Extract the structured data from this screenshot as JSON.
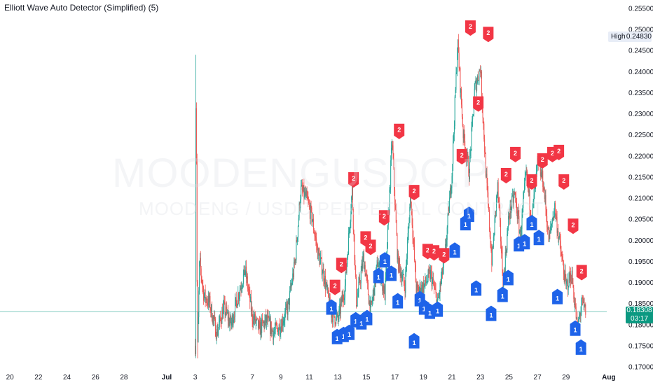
{
  "indicator": {
    "title": "Elliott Wave Auto Detector (Simplified) (5)"
  },
  "watermark": {
    "symbol": "MOODENGUSDC.P",
    "description": "MOODENG / USDC PERPETUAL CONTRACT"
  },
  "badges": {
    "high_label": "High",
    "high_value": "0.24830",
    "last_price": "0.18308",
    "countdown": "03:17"
  },
  "colors": {
    "background": "#ffffff",
    "bullish_candle": "#26a69a",
    "bearish_candle": "#ef5350",
    "wave1_marker": "#1e63e9",
    "wave2_marker": "#f23645",
    "price_line": "#0b9981"
  },
  "chart_data": {
    "type": "candlestick",
    "title": "",
    "xlabel": "",
    "ylabel": "",
    "ylim": [
      0.17,
      0.255
    ],
    "x_ticks": [
      "20",
      "22",
      "24",
      "26",
      "28",
      "Jul",
      "3",
      "5",
      "7",
      "9",
      "11",
      "13",
      "15",
      "17",
      "19",
      "21",
      "23",
      "25",
      "27",
      "29",
      "Aug"
    ],
    "y_ticks": [
      "0.25500",
      "0.25000",
      "0.24500",
      "0.24000",
      "0.23500",
      "0.23000",
      "0.22500",
      "0.22000",
      "0.21500",
      "0.21000",
      "0.20500",
      "0.20000",
      "0.19500",
      "0.19000",
      "0.18500",
      "0.18000",
      "0.17500",
      "0.17000"
    ],
    "high": 0.2483,
    "last_price": 0.18308,
    "data_start": 3.0,
    "data_end": 30.4,
    "price_path": [
      [
        3.0,
        0.175
      ],
      [
        3.05,
        0.244
      ],
      [
        3.15,
        0.172
      ],
      [
        3.3,
        0.195
      ],
      [
        3.6,
        0.187
      ],
      [
        4.0,
        0.185
      ],
      [
        4.5,
        0.178
      ],
      [
        5.0,
        0.184
      ],
      [
        5.5,
        0.18
      ],
      [
        6.0,
        0.187
      ],
      [
        6.5,
        0.193
      ],
      [
        7.0,
        0.182
      ],
      [
        7.5,
        0.179
      ],
      [
        8.0,
        0.181
      ],
      [
        8.5,
        0.178
      ],
      [
        9.0,
        0.18
      ],
      [
        9.5,
        0.184
      ],
      [
        10.0,
        0.195
      ],
      [
        10.4,
        0.212
      ],
      [
        10.8,
        0.21
      ],
      [
        11.2,
        0.205
      ],
      [
        11.6,
        0.197
      ],
      [
        12.0,
        0.192
      ],
      [
        12.5,
        0.183
      ],
      [
        13.0,
        0.181
      ],
      [
        13.5,
        0.189
      ],
      [
        14.0,
        0.212
      ],
      [
        14.3,
        0.185
      ],
      [
        14.8,
        0.196
      ],
      [
        15.3,
        0.183
      ],
      [
        15.8,
        0.195
      ],
      [
        16.3,
        0.187
      ],
      [
        16.8,
        0.224
      ],
      [
        17.2,
        0.195
      ],
      [
        17.7,
        0.189
      ],
      [
        18.1,
        0.211
      ],
      [
        18.5,
        0.188
      ],
      [
        19.0,
        0.189
      ],
      [
        19.5,
        0.192
      ],
      [
        20.0,
        0.185
      ],
      [
        20.5,
        0.196
      ],
      [
        21.0,
        0.216
      ],
      [
        21.4,
        0.247
      ],
      [
        21.8,
        0.225
      ],
      [
        22.2,
        0.216
      ],
      [
        22.6,
        0.236
      ],
      [
        23.0,
        0.241
      ],
      [
        23.4,
        0.215
      ],
      [
        23.8,
        0.195
      ],
      [
        24.2,
        0.213
      ],
      [
        24.6,
        0.19
      ],
      [
        25.0,
        0.206
      ],
      [
        25.4,
        0.211
      ],
      [
        25.8,
        0.201
      ],
      [
        26.2,
        0.216
      ],
      [
        26.6,
        0.205
      ],
      [
        27.0,
        0.218
      ],
      [
        27.4,
        0.214
      ],
      [
        27.8,
        0.2
      ],
      [
        28.2,
        0.208
      ],
      [
        28.6,
        0.198
      ],
      [
        29.0,
        0.189
      ],
      [
        29.4,
        0.192
      ],
      [
        29.8,
        0.179
      ],
      [
        30.1,
        0.185
      ],
      [
        30.4,
        0.1831
      ]
    ],
    "wave_markers": [
      {
        "label": "2",
        "type": "wave2",
        "x": 12.8,
        "price": 0.187
      },
      {
        "label": "2",
        "type": "wave2",
        "x": 13.25,
        "price": 0.1922
      },
      {
        "label": "2",
        "type": "wave2",
        "x": 14.1,
        "price": 0.2125
      },
      {
        "label": "2",
        "type": "wave2",
        "x": 14.95,
        "price": 0.1985
      },
      {
        "label": "2",
        "type": "wave2",
        "x": 15.3,
        "price": 0.1965
      },
      {
        "label": "2",
        "type": "wave2",
        "x": 16.25,
        "price": 0.2035
      },
      {
        "label": "2",
        "type": "wave2",
        "x": 17.3,
        "price": 0.224
      },
      {
        "label": "2",
        "type": "wave2",
        "x": 18.35,
        "price": 0.2095
      },
      {
        "label": "2",
        "type": "wave2",
        "x": 19.3,
        "price": 0.1955
      },
      {
        "label": "2",
        "type": "wave2",
        "x": 19.75,
        "price": 0.1952
      },
      {
        "label": "2",
        "type": "wave2",
        "x": 20.45,
        "price": 0.1945
      },
      {
        "label": "2",
        "type": "wave2",
        "x": 21.7,
        "price": 0.218
      },
      {
        "label": "2",
        "type": "wave2",
        "x": 22.3,
        "price": 0.2485
      },
      {
        "label": "2",
        "type": "wave2",
        "x": 22.85,
        "price": 0.2305
      },
      {
        "label": "2",
        "type": "wave2",
        "x": 23.55,
        "price": 0.247
      },
      {
        "label": "2",
        "type": "wave2",
        "x": 24.8,
        "price": 0.2135
      },
      {
        "label": "2",
        "type": "wave2",
        "x": 25.45,
        "price": 0.2185
      },
      {
        "label": "2",
        "type": "wave2",
        "x": 26.6,
        "price": 0.212
      },
      {
        "label": "2",
        "type": "wave2",
        "x": 27.35,
        "price": 0.217
      },
      {
        "label": "2",
        "type": "wave2",
        "x": 28.05,
        "price": 0.2185
      },
      {
        "label": "2",
        "type": "wave2",
        "x": 28.5,
        "price": 0.219
      },
      {
        "label": "2",
        "type": "wave2",
        "x": 28.85,
        "price": 0.212
      },
      {
        "label": "2",
        "type": "wave2",
        "x": 29.5,
        "price": 0.2015
      },
      {
        "label": "2",
        "type": "wave2",
        "x": 30.1,
        "price": 0.1905
      },
      {
        "label": "1",
        "type": "wave1",
        "x": 12.55,
        "price": 0.186
      },
      {
        "label": "1",
        "type": "wave1",
        "x": 12.95,
        "price": 0.179
      },
      {
        "label": "1",
        "type": "wave1",
        "x": 13.4,
        "price": 0.1795
      },
      {
        "label": "1",
        "type": "wave1",
        "x": 13.8,
        "price": 0.18
      },
      {
        "label": "1",
        "type": "wave1",
        "x": 14.25,
        "price": 0.183
      },
      {
        "label": "1",
        "type": "wave1",
        "x": 14.65,
        "price": 0.1825
      },
      {
        "label": "1",
        "type": "wave1",
        "x": 15.05,
        "price": 0.1835
      },
      {
        "label": "1",
        "type": "wave1",
        "x": 15.85,
        "price": 0.1935
      },
      {
        "label": "1",
        "type": "wave1",
        "x": 16.3,
        "price": 0.1972
      },
      {
        "label": "1",
        "type": "wave1",
        "x": 16.75,
        "price": 0.194
      },
      {
        "label": "1",
        "type": "wave1",
        "x": 17.2,
        "price": 0.1875
      },
      {
        "label": "1",
        "type": "wave1",
        "x": 18.35,
        "price": 0.178
      },
      {
        "label": "1",
        "type": "wave1",
        "x": 18.75,
        "price": 0.188
      },
      {
        "label": "1",
        "type": "wave1",
        "x": 19.05,
        "price": 0.186
      },
      {
        "label": "1",
        "type": "wave1",
        "x": 19.45,
        "price": 0.185
      },
      {
        "label": "1",
        "type": "wave1",
        "x": 20.0,
        "price": 0.1855
      },
      {
        "label": "1",
        "type": "wave1",
        "x": 21.2,
        "price": 0.1995
      },
      {
        "label": "1",
        "type": "wave1",
        "x": 21.95,
        "price": 0.206
      },
      {
        "label": "1",
        "type": "wave1",
        "x": 22.2,
        "price": 0.208
      },
      {
        "label": "1",
        "type": "wave1",
        "x": 22.7,
        "price": 0.1905
      },
      {
        "label": "1",
        "type": "wave1",
        "x": 23.75,
        "price": 0.1845
      },
      {
        "label": "1",
        "type": "wave1",
        "x": 24.55,
        "price": 0.189
      },
      {
        "label": "1",
        "type": "wave1",
        "x": 24.95,
        "price": 0.193
      },
      {
        "label": "1",
        "type": "wave1",
        "x": 25.7,
        "price": 0.201
      },
      {
        "label": "1",
        "type": "wave1",
        "x": 26.1,
        "price": 0.2015
      },
      {
        "label": "1",
        "type": "wave1",
        "x": 26.6,
        "price": 0.206
      },
      {
        "label": "1",
        "type": "wave1",
        "x": 27.1,
        "price": 0.2025
      },
      {
        "label": "1",
        "type": "wave1",
        "x": 28.4,
        "price": 0.1885
      },
      {
        "label": "1",
        "type": "wave1",
        "x": 29.65,
        "price": 0.181
      },
      {
        "label": "1",
        "type": "wave1",
        "x": 30.05,
        "price": 0.1765
      }
    ]
  }
}
